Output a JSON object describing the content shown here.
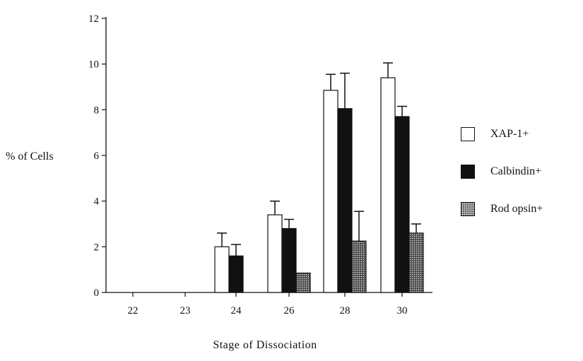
{
  "chart_data": {
    "type": "bar",
    "title": "",
    "xlabel": "Stage of Dissociation",
    "ylabel": "% of Cells",
    "ylim": [
      0,
      12
    ],
    "yticks": [
      0,
      2,
      4,
      6,
      8,
      10,
      12
    ],
    "categories": [
      "22",
      "23",
      "24",
      "26",
      "28",
      "30"
    ],
    "series": [
      {
        "name": "XAP-1+",
        "fill": "white",
        "values": [
          0,
          0,
          2.0,
          3.4,
          8.85,
          9.4
        ],
        "errors": [
          0,
          0,
          0.6,
          0.6,
          0.7,
          0.65
        ]
      },
      {
        "name": "Calbindin+",
        "fill": "black",
        "values": [
          0,
          0,
          1.6,
          2.8,
          8.05,
          7.7
        ],
        "errors": [
          0,
          0,
          0.5,
          0.4,
          1.55,
          0.45
        ]
      },
      {
        "name": "Rod opsin+",
        "fill": "dotted",
        "values": [
          0,
          0,
          0,
          0.85,
          2.25,
          2.6
        ],
        "errors": [
          0,
          0,
          0,
          0,
          1.3,
          0.4
        ]
      }
    ],
    "legend_position": "right",
    "grid": false
  },
  "colors": {
    "ink": "#111111",
    "white_fill": "#ffffff",
    "black_fill": "#111111",
    "dotted_fill": "#555555"
  }
}
